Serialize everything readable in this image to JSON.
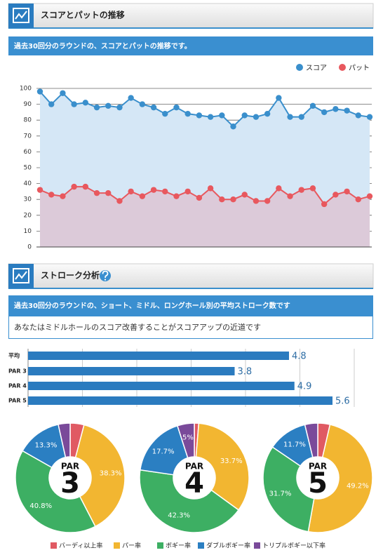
{
  "sections": [
    {
      "title": "スコアとパットの推移",
      "description": "過去30回分のラウンドの、スコアとパットの推移です。"
    },
    {
      "title": "ストローク分析",
      "description": "過去30回分のラウンドの、ショート、ミドル、ロングホール別の平均ストローク数です",
      "message": "あなたはミドルホールのスコア改善することがスコアアップの近道です"
    }
  ],
  "chart_data": [
    {
      "type": "line",
      "legend": "top-right",
      "grid": true,
      "ylim": [
        0,
        100
      ],
      "yticks": [
        0,
        10,
        20,
        30,
        40,
        50,
        60,
        70,
        80,
        90,
        100
      ],
      "series": [
        {
          "name": "スコア",
          "color": "#3a8fcc",
          "area_color": "#d5e7f6",
          "values": [
            98,
            90,
            97,
            90,
            91,
            88,
            89,
            88,
            94,
            90,
            88,
            84,
            88,
            84,
            83,
            82,
            83,
            76,
            83,
            82,
            84,
            94,
            82,
            82,
            89,
            85,
            87,
            86,
            83,
            82
          ]
        },
        {
          "name": "パット",
          "color": "#e8585e",
          "area_color": "#dccad9",
          "values": [
            36,
            33,
            32,
            38,
            38,
            34,
            34,
            29,
            35,
            32,
            36,
            35,
            32,
            35,
            31,
            37,
            30,
            30,
            33,
            29,
            29,
            37,
            32,
            36,
            37,
            27,
            33,
            35,
            30,
            32
          ]
        }
      ]
    },
    {
      "type": "bar",
      "orientation": "horizontal",
      "categories": [
        "平均",
        "PAR 3",
        "PAR 4",
        "PAR 5"
      ],
      "values": [
        4.8,
        3.8,
        4.9,
        5.6
      ],
      "color": "#2b7bbf",
      "label_color": "#2e6da4",
      "xlim": [
        0,
        6
      ],
      "xticks": [
        1,
        2,
        3,
        4,
        5,
        6
      ],
      "grid": true
    },
    {
      "type": "pie",
      "label": "PAR",
      "number": 3,
      "values": [
        4.1,
        38.3,
        40.8,
        13.3,
        3.5
      ],
      "value_labels": [
        null,
        "38.3%",
        "40.8%",
        "13.3%",
        null
      ]
    },
    {
      "type": "pie",
      "label": "PAR",
      "number": 4,
      "values": [
        1.3,
        33.7,
        42.3,
        17.7,
        5
      ],
      "value_labels": [
        null,
        "33.7%",
        "42.3%",
        "17.7%",
        "5%"
      ]
    },
    {
      "type": "pie",
      "label": "PAR",
      "number": 5,
      "values": [
        3.6,
        49.2,
        31.7,
        11.7,
        3.8
      ],
      "value_labels": [
        null,
        "49.2%",
        "31.7%",
        "11.7%",
        null
      ]
    }
  ],
  "pie_legend": [
    {
      "name": "バーディ以上率",
      "color": "#e05a63"
    },
    {
      "name": "パー率",
      "color": "#f2b631"
    },
    {
      "name": "ボギー率",
      "color": "#3daf63"
    },
    {
      "name": "ダブルボギー率",
      "color": "#2b7fc2"
    },
    {
      "name": "トリプルボギー以下率",
      "color": "#7a4a9a"
    }
  ]
}
